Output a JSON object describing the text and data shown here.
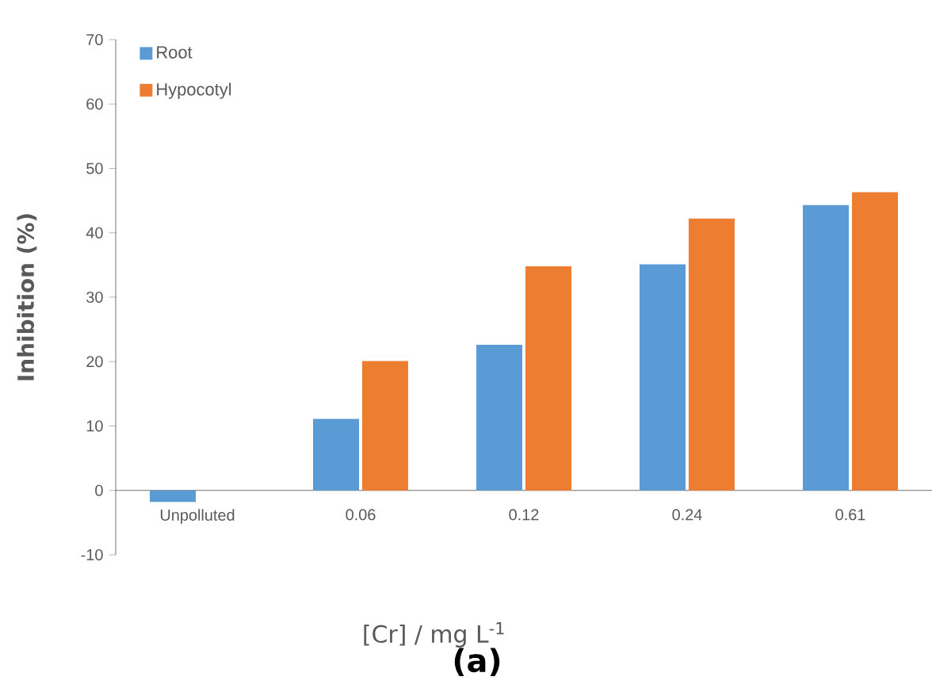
{
  "chart_data": {
    "type": "bar",
    "title": "(a)",
    "xlabel": "[Cr] / mg L$^{-1}$",
    "ylabel": "Inhibition (%)",
    "categories": [
      "Unpolluted",
      "0.06",
      "0.12",
      "0.24",
      "0.61"
    ],
    "series": [
      {
        "name": "Root",
        "color": "#5b9bd5",
        "values": [
          -1.8,
          11.1,
          22.6,
          35.1,
          44.3
        ]
      },
      {
        "name": "Hypocotyl",
        "color": "#ed7d31",
        "values": [
          0,
          20.1,
          34.8,
          42.2,
          46.3
        ]
      }
    ],
    "ylim": [
      -10,
      70
    ],
    "yticks": [
      -10,
      0,
      10,
      20,
      30,
      40,
      50,
      60,
      70
    ],
    "grid": false,
    "legend": "top left"
  }
}
